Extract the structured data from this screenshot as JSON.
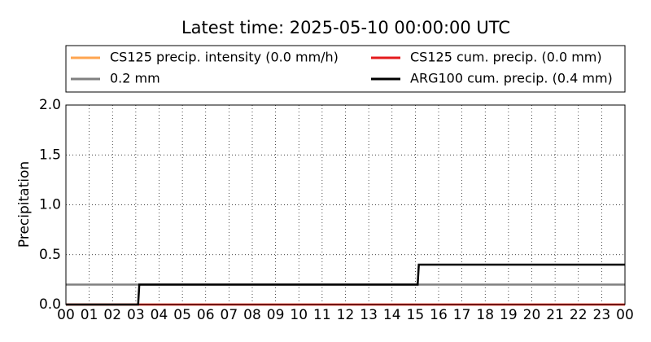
{
  "chart_data": {
    "type": "line",
    "title": "Latest time: 2025-05-10 00:00:00 UTC",
    "ylabel": "Precipitation",
    "xlim": [
      0,
      24
    ],
    "ylim": [
      0,
      2
    ],
    "xticks": [
      {
        "value": 0,
        "label": "00"
      },
      {
        "value": 1,
        "label": "01"
      },
      {
        "value": 2,
        "label": "02"
      },
      {
        "value": 3,
        "label": "03"
      },
      {
        "value": 4,
        "label": "04"
      },
      {
        "value": 5,
        "label": "05"
      },
      {
        "value": 6,
        "label": "06"
      },
      {
        "value": 7,
        "label": "07"
      },
      {
        "value": 8,
        "label": "08"
      },
      {
        "value": 9,
        "label": "09"
      },
      10,
      11,
      12,
      13,
      14,
      15,
      16,
      17,
      18,
      19,
      20,
      21,
      22,
      23,
      {
        "value": 24,
        "label": "00"
      }
    ],
    "yticks": [
      {
        "value": 0,
        "label": "0.0"
      },
      0.5,
      {
        "value": 1,
        "label": "1.0"
      },
      1.5,
      {
        "value": 2,
        "label": "2.0"
      }
    ],
    "grid": true,
    "legend": "top",
    "series": [
      {
        "name": "CS125 precip. intensity (0.0 mm/h)",
        "color": "#ffa54f",
        "x": [
          0,
          24
        ],
        "values": [
          0,
          0
        ]
      },
      {
        "name": "0.2 mm",
        "color": "#808080",
        "x": [
          0,
          24
        ],
        "values": [
          0.2,
          0.2
        ]
      },
      {
        "name": "CS125 cum. precip. (0.0 mm)",
        "color": "#e41a1c",
        "x": [
          0,
          24
        ],
        "values": [
          0,
          0
        ]
      },
      {
        "name": "ARG100 cum. precip. (0.4 mm)",
        "color": "#000000",
        "x": [
          0,
          3.1,
          3.15,
          15.1,
          15.15,
          24
        ],
        "values": [
          0,
          0,
          0.2,
          0.2,
          0.4,
          0.4
        ]
      }
    ]
  }
}
